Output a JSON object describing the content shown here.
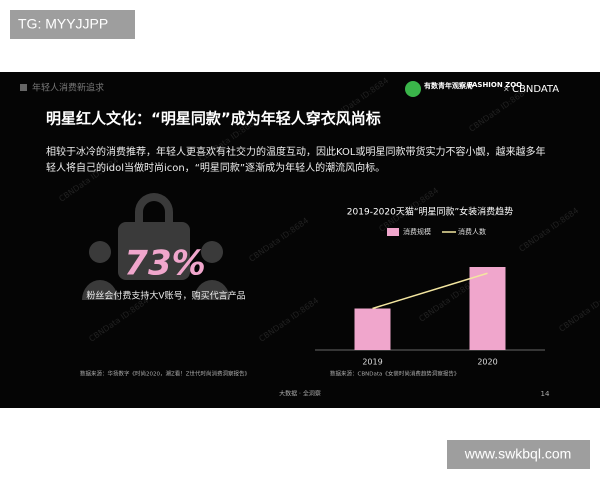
{
  "tag": "TG: MYYJJPP",
  "site": "www.swkbql.com",
  "slide": {
    "section": "年轻人消费新追求",
    "logos": [
      "有数青年观察局",
      "FASHION ZOO",
      "×",
      "CBNDATA"
    ],
    "title": "明星红人文化：“明星同款”成为年轻人穿衣风尚标",
    "paragraph": [
      "相较于冰冷的消费推荐，年轻人更喜欢有社交力的温度互动，因此KOL或明星同款带货实力不容小觑，越来越多年",
      "轻人将自己的idol当做时尚icon，“明星同款”逐渐成为年轻人的潮流风向标。"
    ],
    "stat": "73%",
    "stat_caption": "粉丝会付费支持大V账号，购买代言产品",
    "source_left": "数据来源：华扬数字《时尚2020，潮Z看！Z世代时尚消费洞察报告》",
    "source_right": "数据来源：CBNData《女装时尚消费趋势洞察报告》",
    "footer": "大数据 · 全洞察",
    "page": "14",
    "watermark": "CBNData ID:8684"
  },
  "chart_data": {
    "type": "bar",
    "title": "2019-2020天猫“明星同款”女装消费趋势",
    "categories": [
      "2019",
      "2020"
    ],
    "series": [
      {
        "name": "消费规模",
        "color": "#f0a6cc",
        "values": [
          1.0,
          2.0
        ]
      },
      {
        "name": "消费人数",
        "color": "#f3e6a0",
        "type": "line",
        "values": [
          1.0,
          1.85
        ]
      }
    ]
  }
}
